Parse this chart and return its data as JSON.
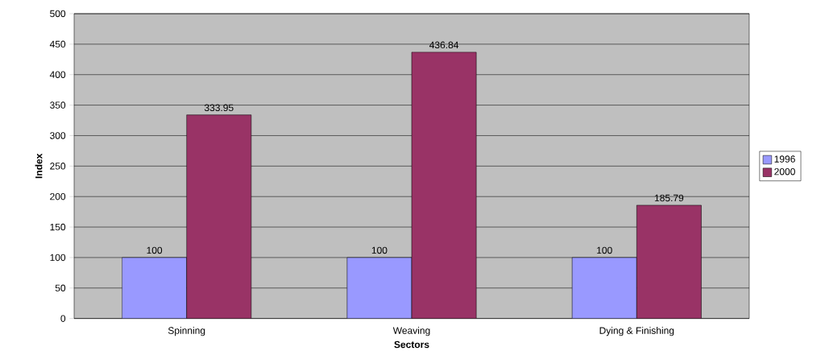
{
  "chart_data": {
    "type": "bar",
    "xlabel": "Sectors",
    "ylabel": "Index",
    "categories": [
      "Spinning",
      "Weaving",
      "Dying & Finishing"
    ],
    "series": [
      {
        "name": "1996",
        "color": "#9999ff",
        "values": [
          100,
          100,
          100
        ]
      },
      {
        "name": "2000",
        "color": "#993366",
        "values": [
          333.95,
          436.84,
          185.79
        ]
      }
    ],
    "ylim": [
      0,
      500
    ],
    "yticks": [
      0,
      50,
      100,
      150,
      200,
      250,
      300,
      350,
      400,
      450,
      500
    ],
    "grid": "y",
    "legend": "right",
    "data_labels": true
  }
}
